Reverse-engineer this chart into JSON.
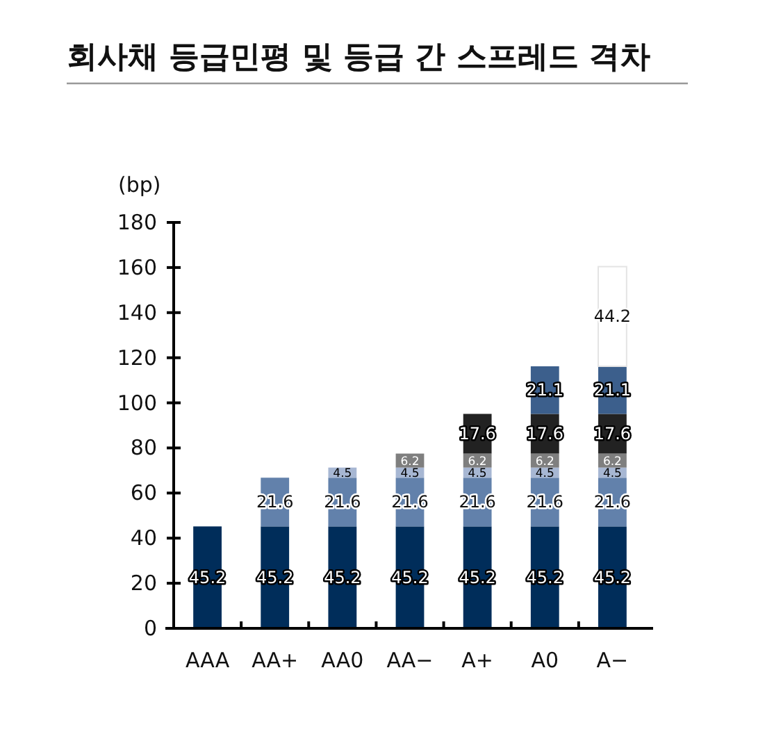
{
  "chart_data": {
    "type": "bar",
    "title": "회사채 등급민평 및 등급 간 스프레드 격차",
    "ylabel": "(bp)",
    "stacked": true,
    "data_labels": true,
    "categories": [
      "AAA",
      "AA+",
      "AA0",
      "AA−",
      "A+",
      "A0",
      "A−"
    ],
    "series": [
      {
        "color": "#002d5a",
        "values": [
          45.2,
          45.2,
          45.2,
          45.2,
          45.2,
          45.2,
          45.2
        ]
      },
      {
        "color": "#6281ab",
        "values": [
          null,
          21.6,
          21.6,
          21.6,
          21.6,
          21.6,
          21.6
        ]
      },
      {
        "color": "#a7b7d3",
        "values": [
          null,
          null,
          4.5,
          4.5,
          4.5,
          4.5,
          4.5
        ]
      },
      {
        "color": "#7f7f7f",
        "values": [
          null,
          null,
          null,
          6.2,
          6.2,
          6.2,
          6.2
        ]
      },
      {
        "color": "#222222",
        "values": [
          null,
          null,
          null,
          null,
          17.6,
          17.6,
          17.6
        ]
      },
      {
        "color": "#3c5f8c",
        "values": [
          null,
          null,
          null,
          null,
          null,
          21.1,
          21.1
        ]
      },
      {
        "color": "#ffffff",
        "values": [
          null,
          null,
          null,
          null,
          null,
          null,
          44.2
        ]
      }
    ],
    "ylim": [
      0,
      180
    ],
    "yticks": [
      0,
      20,
      40,
      60,
      80,
      100,
      120,
      140,
      160,
      180
    ],
    "grid": false
  }
}
